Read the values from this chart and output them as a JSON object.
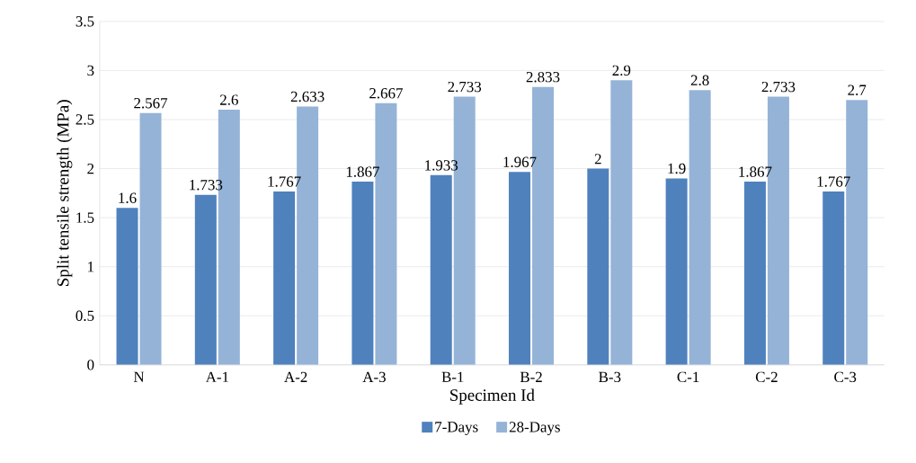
{
  "chart_data": {
    "type": "bar",
    "xlabel": "Specimen Id",
    "ylabel": "Split tensile strength (MPa)",
    "categories": [
      "N",
      "A-1",
      "A-2",
      "A-3",
      "B-1",
      "B-2",
      "B-3",
      "C-1",
      "C-2",
      "C-3"
    ],
    "series": [
      {
        "name": "7-Days",
        "color": "#4f81bd",
        "values": [
          1.6,
          1.733,
          1.767,
          1.867,
          1.933,
          1.967,
          2,
          1.9,
          1.867,
          1.767
        ]
      },
      {
        "name": "28-Days",
        "color": "#95b3d7",
        "values": [
          2.567,
          2.6,
          2.633,
          2.667,
          2.733,
          2.833,
          2.9,
          2.8,
          2.733,
          2.7
        ]
      }
    ],
    "ylim": [
      0,
      3.5
    ],
    "yticks": [
      0,
      0.5,
      1,
      1.5,
      2,
      2.5,
      3,
      3.5
    ],
    "grid": "y",
    "legend": "bottom",
    "data_labels": true
  }
}
